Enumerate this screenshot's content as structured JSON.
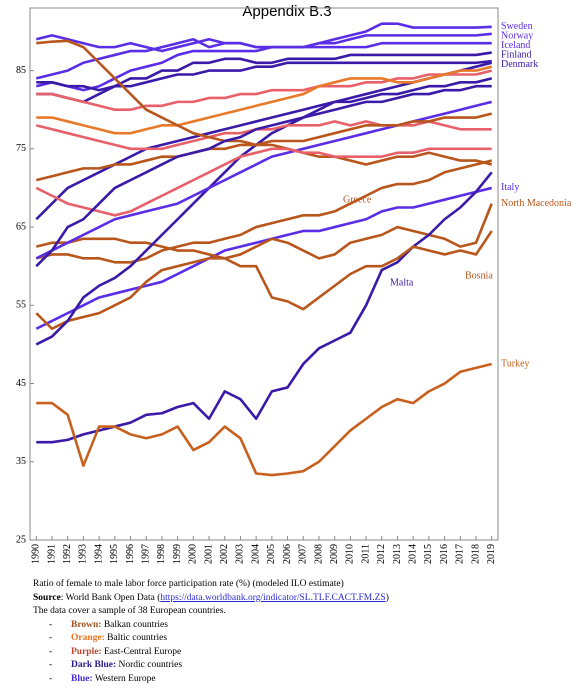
{
  "chart_data": {
    "type": "line",
    "title": "Appendix B.3",
    "x": [
      1990,
      1991,
      1992,
      1993,
      1994,
      1995,
      1996,
      1997,
      1998,
      1999,
      2000,
      2001,
      2002,
      2003,
      2004,
      2005,
      2006,
      2007,
      2008,
      2009,
      2010,
      2011,
      2012,
      2013,
      2014,
      2015,
      2016,
      2017,
      2018,
      2019
    ],
    "xlim": [
      1989.6,
      2019.4
    ],
    "xticks": [
      1990,
      1991,
      1992,
      1993,
      1994,
      1995,
      1996,
      1997,
      1998,
      1999,
      2000,
      2001,
      2002,
      2003,
      2004,
      2005,
      2006,
      2007,
      2008,
      2009,
      2010,
      2011,
      2012,
      2013,
      2014,
      2015,
      2016,
      2017,
      2018,
      2019
    ],
    "ylim": [
      25,
      93
    ],
    "yticks": [
      25,
      35,
      45,
      55,
      65,
      75,
      85
    ],
    "series": [
      {
        "name": "Sweden",
        "color": "#5a2ee6",
        "values": [
          89,
          89.5,
          89,
          88.5,
          88,
          88,
          88.5,
          88,
          87.5,
          88,
          88.5,
          89,
          88.5,
          88.5,
          88,
          88,
          88,
          88,
          88.5,
          89,
          89.5,
          90,
          91,
          91,
          90.5,
          90.5,
          90.5,
          90.5,
          90.5,
          90.6
        ]
      },
      {
        "name": "Norway",
        "color": "#5a2ee6",
        "values": [
          84,
          84.5,
          85,
          86,
          86.5,
          87,
          87.5,
          87.5,
          88,
          88.5,
          89,
          88,
          88.5,
          88.5,
          88,
          88,
          88,
          88,
          88.5,
          88.5,
          89,
          89.5,
          89.5,
          89.5,
          89.5,
          89.5,
          89.5,
          89.5,
          89.5,
          89.7
        ]
      },
      {
        "name": "Iceland",
        "color": "#5a2ee6",
        "values": [
          83,
          83.5,
          83,
          82.5,
          83,
          84,
          85,
          85.5,
          86,
          87,
          87.5,
          87.5,
          87.5,
          87.5,
          87.5,
          88,
          88,
          88,
          88,
          88,
          88,
          88,
          88.5,
          88.5,
          88.5,
          88.5,
          88.5,
          88.5,
          88.5,
          88.5
        ]
      },
      {
        "name": "Finland",
        "color": "#3a1aa8",
        "values": [
          82,
          82,
          81.5,
          81,
          82,
          83,
          84,
          84,
          85,
          85,
          86,
          86,
          86.5,
          86.5,
          86,
          86,
          86.5,
          86.5,
          86.5,
          86.5,
          87,
          87,
          87,
          87,
          87,
          87,
          87,
          87,
          87,
          87.3
        ]
      },
      {
        "name": "Denmark",
        "color": "#3a1aa8",
        "values": [
          83.5,
          83.5,
          83,
          83,
          82.5,
          83,
          83,
          83.5,
          84,
          84.5,
          84.5,
          85,
          85,
          85,
          85.5,
          85.5,
          86,
          86,
          86,
          86,
          86,
          86,
          86,
          86,
          86,
          86,
          86,
          86,
          86,
          86.2
        ]
      },
      {
        "name": "Italy",
        "color": "#5a2ee6",
        "values": [
          52,
          53,
          54,
          55,
          56,
          56.5,
          57,
          57.5,
          58,
          59,
          60,
          61,
          62,
          62.5,
          63,
          63.5,
          64,
          64.5,
          64.5,
          65,
          65.5,
          66,
          67,
          67.5,
          67.5,
          68,
          68.5,
          69,
          69.5,
          70
        ]
      },
      {
        "name": "North Macedonia",
        "color": "#b8561c",
        "values": [
          62.5,
          63,
          63,
          63.5,
          63.5,
          63.5,
          63,
          63,
          62.5,
          62,
          62,
          61.5,
          61,
          61.5,
          62.5,
          63.5,
          63,
          62,
          61,
          61.5,
          63,
          63.5,
          64,
          65,
          64.5,
          64,
          63.5,
          62.5,
          63,
          68
        ]
      },
      {
        "name": "Greece",
        "color": "#b8561c",
        "values": [
          61,
          61.5,
          61.5,
          61,
          61,
          60.5,
          60.5,
          61,
          62,
          62.5,
          63,
          63,
          63.5,
          64,
          65,
          65.5,
          66,
          66.5,
          66.5,
          67,
          68,
          69,
          70,
          70.5,
          70.5,
          71,
          72,
          72.5,
          73,
          73.5
        ]
      },
      {
        "name": "Malta",
        "color": "#3a1aa8",
        "values": [
          37.5,
          37.5,
          37.8,
          38.5,
          39,
          39.5,
          40,
          41,
          41.2,
          42,
          42.5,
          40.5,
          44,
          43,
          40.5,
          44,
          44.5,
          47.5,
          49.5,
          50.5,
          51.5,
          55,
          59.5,
          60.5,
          62.5,
          64,
          66,
          67.5,
          69.5,
          72
        ]
      },
      {
        "name": "Bosnia",
        "color": "#b8561c",
        "values": [
          54,
          52,
          53,
          53.5,
          54,
          55,
          56,
          58,
          59.5,
          60,
          60.5,
          61,
          61,
          60,
          60,
          56,
          55.5,
          54.5,
          56,
          57.5,
          59,
          60,
          60,
          61,
          62.5,
          62,
          61.5,
          62,
          61.5,
          64.5
        ]
      },
      {
        "name": "Turkey",
        "color": "#c8601e",
        "values": [
          42.5,
          42.5,
          41,
          34.5,
          39.5,
          39.5,
          38.5,
          38,
          38.5,
          39.5,
          36.5,
          37.5,
          39.5,
          38,
          33.5,
          33.3,
          33.5,
          33.8,
          35,
          37,
          39,
          40.5,
          42,
          43,
          42.5,
          44,
          45,
          46.5,
          47,
          47.5
        ]
      },
      {
        "color": "#3a1aa8",
        "values": [
          50,
          51,
          53,
          56,
          57.5,
          58.5,
          60,
          62,
          64,
          66,
          68,
          70,
          72,
          74,
          75.5,
          77,
          78,
          79,
          80,
          81,
          81.5,
          82,
          82.5,
          83,
          83.5,
          84,
          84.5,
          85,
          85.5,
          86
        ]
      },
      {
        "color": "#3a1aa8",
        "values": [
          66,
          68,
          70,
          71,
          72,
          73,
          74,
          75,
          75.5,
          76,
          76.5,
          77,
          77.5,
          78,
          78.5,
          79,
          79.5,
          80,
          80.5,
          81,
          81,
          81.5,
          82,
          82,
          82.5,
          83,
          83,
          83.5,
          83.5,
          84
        ]
      },
      {
        "color": "#5a2ee6",
        "values": [
          61,
          62,
          63,
          64,
          65,
          66,
          66.5,
          67,
          67.5,
          68,
          69,
          70,
          71,
          72,
          73,
          74,
          74.5,
          75,
          75.5,
          76,
          76.5,
          77,
          77.5,
          78,
          78.5,
          79,
          79.5,
          80,
          80.5,
          81
        ]
      },
      {
        "color": "#e8606a",
        "values": [
          78,
          77.5,
          77,
          76.5,
          76,
          75.5,
          75,
          75,
          75,
          75.5,
          76,
          76.5,
          77,
          77,
          77.5,
          77.5,
          78,
          78,
          78,
          78.5,
          78,
          78.5,
          78,
          78,
          78,
          78.5,
          78,
          77.5,
          77.5,
          77.5
        ]
      },
      {
        "color": "#e8606a",
        "values": [
          82,
          82,
          81.5,
          81,
          80.5,
          80,
          80,
          80.5,
          80.5,
          81,
          81,
          81.5,
          81.5,
          82,
          82,
          82.5,
          82.5,
          82.5,
          83,
          83,
          83,
          83.5,
          83.5,
          84,
          84,
          84.5,
          84.5,
          84.5,
          84.5,
          85
        ]
      },
      {
        "color": "#e87a2a",
        "values": [
          79,
          79,
          78.5,
          78,
          77.5,
          77,
          77,
          77.5,
          78,
          78,
          78.5,
          79,
          79.5,
          80,
          80.5,
          81,
          81.5,
          82,
          83,
          83.5,
          84,
          84,
          84,
          83.5,
          83.5,
          84,
          84.5,
          85,
          85,
          85.5
        ]
      },
      {
        "color": "#b8561c",
        "values": [
          71,
          71.5,
          72,
          72.5,
          72.5,
          73,
          73,
          73.5,
          74,
          74,
          74.5,
          75,
          75,
          75.5,
          75.5,
          76,
          76,
          76,
          76.5,
          77,
          77.5,
          78,
          78,
          78,
          78.5,
          78.5,
          79,
          79,
          79,
          79.5
        ]
      },
      {
        "color": "#b8561c",
        "values": [
          88.5,
          88.7,
          88.8,
          88,
          86,
          84,
          82,
          80,
          79,
          78,
          77,
          76.5,
          76,
          76,
          75.5,
          75.5,
          75,
          74.5,
          74,
          74,
          73.5,
          73,
          73.5,
          74,
          74,
          74.5,
          74,
          73.5,
          73.5,
          73
        ]
      },
      {
        "color": "#e8606a",
        "values": [
          70,
          69,
          68,
          67.5,
          67,
          66.5,
          67,
          68,
          69,
          70,
          71,
          72,
          73,
          74,
          74.5,
          75,
          75,
          74.5,
          74.5,
          74,
          74,
          74,
          74,
          74.5,
          74.5,
          75,
          75,
          75,
          75,
          75
        ]
      },
      {
        "color": "#3a1aa8",
        "values": [
          60,
          62,
          65,
          66,
          68,
          70,
          71,
          72,
          73,
          74,
          74.5,
          75,
          76,
          76.5,
          77.5,
          78,
          78.5,
          79,
          79.5,
          80,
          80.5,
          81,
          81,
          81.5,
          82,
          82,
          82.5,
          82.5,
          83,
          83
        ]
      }
    ],
    "caption": "Ratio of female to male labor force participation rate (%) (modeled ILO estimate)",
    "source": {
      "label": "Source",
      "text": ": World Bank Open Data (",
      "url": "https://data.worldbank.org/indicator/SL.TLF.CACT.FM.ZS",
      "end": ")"
    },
    "sample_note": "The data cover a sample of 38 European countries.",
    "color_key": [
      {
        "bullet": "-",
        "label": "Brown:",
        "text": " Balkan countries",
        "color": "#a0521c"
      },
      {
        "bullet": "-",
        "label": "Orange:",
        "text": " Baltic countries",
        "color": "#e8731e"
      },
      {
        "bullet": "-",
        "label": "Purple:",
        "text": " East-Central Europe",
        "color": "#c0482e"
      },
      {
        "bullet": "-",
        "label": "Dark Blue:",
        "text": " Nordic countries",
        "color": "#2a1a8a"
      },
      {
        "bullet": "-",
        "label": "Blue:",
        "text": " Western Europe",
        "color": "#4a2ae0"
      }
    ]
  }
}
